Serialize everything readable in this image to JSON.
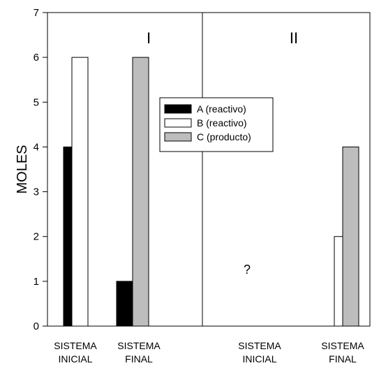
{
  "chart_data": {
    "type": "bar",
    "ylabel": "MOLES",
    "ylim": [
      0,
      7
    ],
    "yticks": [
      0,
      1,
      2,
      3,
      4,
      5,
      6,
      7
    ],
    "grid": false,
    "legend_position": "center",
    "panels": [
      "I",
      "II"
    ],
    "categories": [
      {
        "line1": "SISTEMA",
        "line2": "INICIAL"
      },
      {
        "line1": "SISTEMA",
        "line2": "FINAL"
      },
      {
        "line1": "SISTEMA",
        "line2": "INICIAL"
      },
      {
        "line1": "SISTEMA",
        "line2": "FINAL"
      }
    ],
    "series": [
      {
        "name": "A (reactivo)",
        "color": "#000000",
        "values": [
          4,
          1,
          null,
          0
        ]
      },
      {
        "name": "B (reactivo)",
        "color": "#ffffff",
        "values": [
          6,
          0,
          null,
          2
        ]
      },
      {
        "name": "C (producto)",
        "color": "#bdbdbd",
        "values": [
          0,
          6,
          null,
          4
        ]
      }
    ],
    "annotations": [
      "?"
    ]
  }
}
